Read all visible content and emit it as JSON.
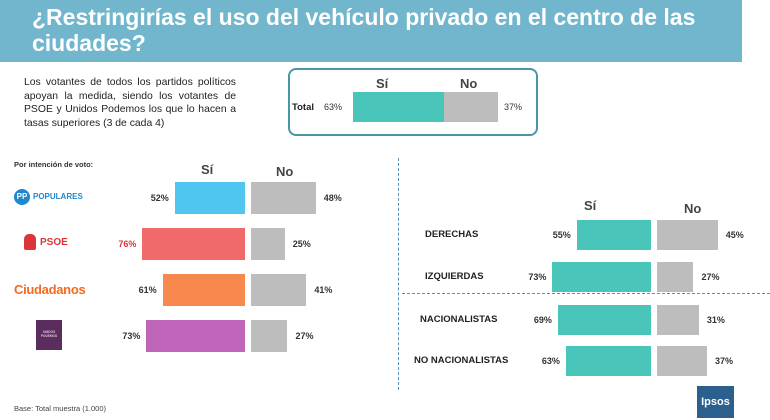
{
  "title": "¿Restringirías el uso del vehículo privado en el centro de las ciudades?",
  "intro": "Los votantes de todos los partidos políticos apoyan la medida, siendo los votantes de PSOE y Unidos Podemos los que lo hacen a tasas superiores (3 de cada 4)",
  "total_panel": {
    "si_header": "Sí",
    "no_header": "No",
    "row_label": "Total",
    "si_label": "63%",
    "no_label": "37%"
  },
  "parties_panel": {
    "subtitle": "Por intención de voto:",
    "si_header": "Sí",
    "no_header": "No",
    "rows": [
      {
        "logo_text": "POPULARES",
        "logo_badge": "PP",
        "si_label": "52%",
        "no_label": "48%",
        "color": "#4fc6f0",
        "label_color": "#333333"
      },
      {
        "logo_text": "PSOE",
        "logo_badge": "",
        "si_label": "76%",
        "no_label": "25%",
        "color": "#f06a6c",
        "label_color": "#d9353b"
      },
      {
        "logo_text": "Ciudadanos",
        "logo_badge": "",
        "si_label": "61%",
        "no_label": "41%",
        "color": "#f7884e",
        "label_color": "#333333"
      },
      {
        "logo_text": "UNIDOS PODEMOS",
        "logo_badge": "",
        "si_label": "73%",
        "no_label": "27%",
        "color": "#bf66ba",
        "label_color": "#333333"
      }
    ]
  },
  "ideology_panel": {
    "si_header": "Sí",
    "no_header": "No",
    "rows": [
      {
        "label": "DERECHAS",
        "si_label": "55%",
        "no_label": "45%"
      },
      {
        "label": "IZQUIERDAS",
        "si_label": "73%",
        "no_label": "27%"
      },
      {
        "label": "NACIONALISTAS",
        "si_label": "69%",
        "no_label": "31%"
      },
      {
        "label": "NO NACIONALISTAS",
        "si_label": "63%",
        "no_label": "37%"
      }
    ]
  },
  "footer": {
    "base_note": "Base:  Total muestra (1.000)",
    "brand": "Ipsos"
  },
  "colors": {
    "header_bg": "#72b6cd",
    "si_teal": "#49c6b9",
    "no_gray": "#bdbdbd",
    "divider": "#5a8fb8"
  },
  "chart_data": [
    {
      "type": "bar",
      "categories": [
        "Total"
      ],
      "series": [
        {
          "name": "Sí",
          "values": [
            63
          ]
        },
        {
          "name": "No",
          "values": [
            37
          ]
        }
      ]
    },
    {
      "type": "bar",
      "categories": [
        "POPULARES",
        "PSOE",
        "Ciudadanos",
        "UNIDOS PODEMOS"
      ],
      "series": [
        {
          "name": "Sí",
          "values": [
            52,
            76,
            61,
            73
          ]
        },
        {
          "name": "No",
          "values": [
            48,
            25,
            41,
            27
          ]
        }
      ]
    },
    {
      "type": "bar",
      "categories": [
        "DERECHAS",
        "IZQUIERDAS",
        "NACIONALISTAS",
        "NO NACIONALISTAS"
      ],
      "series": [
        {
          "name": "Sí",
          "values": [
            55,
            73,
            69,
            63
          ]
        },
        {
          "name": "No",
          "values": [
            45,
            27,
            31,
            37
          ]
        }
      ]
    }
  ]
}
